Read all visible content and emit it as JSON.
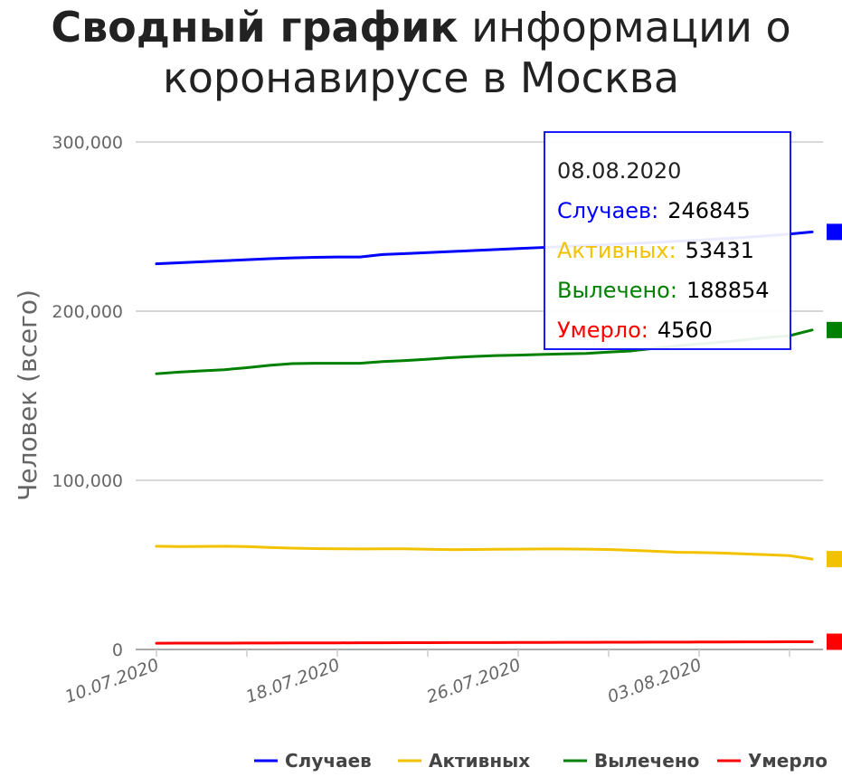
{
  "title": {
    "bold": "Сводный график",
    "rest": "информации о коронавирусе в Москва"
  },
  "tooltip": {
    "date": "08.08.2020",
    "rows": [
      {
        "label": "Случаев:",
        "value": "246845",
        "color": "#0000ff"
      },
      {
        "label": "Активных:",
        "value": "53431",
        "color": "#f2c200"
      },
      {
        "label": "Вылечено:",
        "value": "188854",
        "color": "#008000"
      },
      {
        "label": "Умерло:",
        "value": "4560",
        "color": "#ff0000"
      }
    ]
  },
  "chart_data": {
    "type": "line",
    "title": "Сводный график информации о коронавирусе в Москва",
    "ylabel": "Человек (всего)",
    "xlabel": "",
    "ylim": [
      0,
      300000
    ],
    "yticks": [
      "0",
      "100,000",
      "200,000",
      "300,000"
    ],
    "x": [
      "10.07.2020",
      "11.07.2020",
      "12.07.2020",
      "13.07.2020",
      "14.07.2020",
      "15.07.2020",
      "16.07.2020",
      "17.07.2020",
      "18.07.2020",
      "19.07.2020",
      "20.07.2020",
      "21.07.2020",
      "22.07.2020",
      "23.07.2020",
      "24.07.2020",
      "25.07.2020",
      "26.07.2020",
      "27.07.2020",
      "28.07.2020",
      "29.07.2020",
      "30.07.2020",
      "31.07.2020",
      "01.08.2020",
      "02.08.2020",
      "03.08.2020",
      "04.08.2020",
      "05.08.2020",
      "06.08.2020",
      "07.08.2020",
      "08.08.2020"
    ],
    "xtick_labels": [
      "10.07.2020",
      "18.07.2020",
      "26.07.2020",
      "03.08.2020"
    ],
    "legend_position": "bottom",
    "grid": true,
    "series": [
      {
        "name": "Случаев",
        "color": "#0000ff",
        "values": [
          228000,
          228600,
          229200,
          229800,
          230400,
          231000,
          231500,
          231800,
          232000,
          232000,
          233500,
          234000,
          234600,
          235200,
          235800,
          236400,
          237000,
          237600,
          238200,
          238800,
          239400,
          240000,
          240600,
          241300,
          242000,
          242800,
          243600,
          244500,
          245600,
          246845
        ]
      },
      {
        "name": "Активных",
        "color": "#f2c200",
        "values": [
          61000,
          60800,
          60900,
          61000,
          60800,
          60300,
          59900,
          59600,
          59500,
          59400,
          59500,
          59500,
          59200,
          59000,
          59100,
          59200,
          59300,
          59400,
          59400,
          59300,
          59100,
          58600,
          58100,
          57500,
          57300,
          57000,
          56500,
          56000,
          55500,
          53431
        ]
      },
      {
        "name": "Вылечено",
        "color": "#008000",
        "values": [
          163000,
          164000,
          164700,
          165400,
          166600,
          168000,
          169000,
          169200,
          169200,
          169200,
          170200,
          170800,
          171600,
          172500,
          173200,
          173700,
          174000,
          174400,
          174700,
          175000,
          175800,
          176500,
          178000,
          179500,
          180600,
          181700,
          183000,
          184500,
          185500,
          188854
        ]
      },
      {
        "name": "Умерло",
        "color": "#ff0000",
        "values": [
          3700,
          3720,
          3740,
          3760,
          3790,
          3820,
          3850,
          3880,
          3900,
          3930,
          3960,
          3990,
          4020,
          4050,
          4080,
          4110,
          4140,
          4170,
          4200,
          4230,
          4260,
          4290,
          4320,
          4350,
          4380,
          4410,
          4450,
          4490,
          4525,
          4560
        ]
      }
    ]
  }
}
